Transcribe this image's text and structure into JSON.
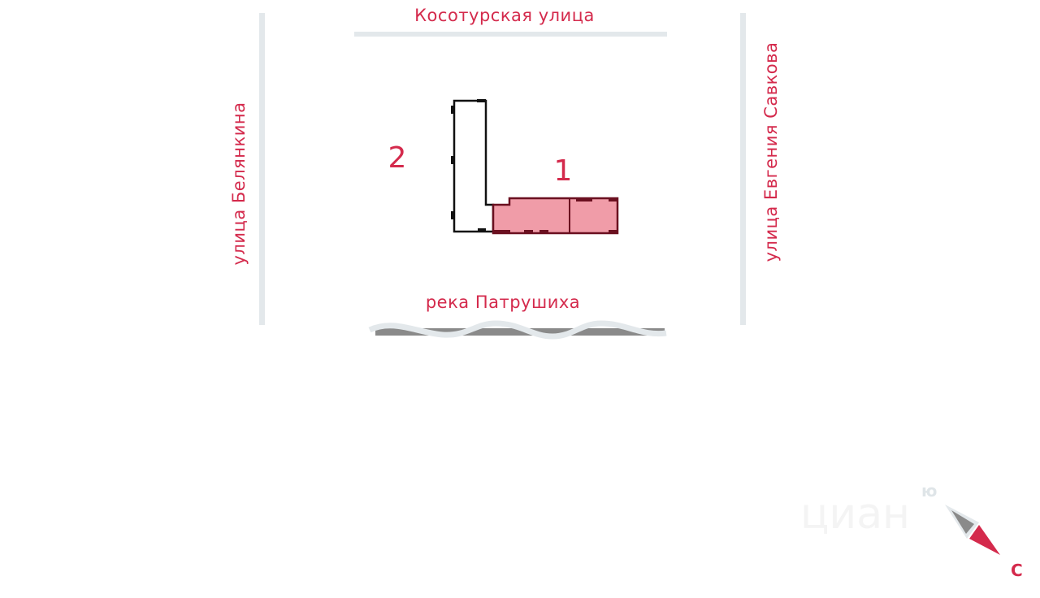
{
  "streets": {
    "top": "Косотурская  улица",
    "left": "улица  Белянкина",
    "right": "улица  Евгения  Савкова",
    "river": "река  Патрушиха"
  },
  "buildings": [
    {
      "number": "1",
      "highlighted": true
    },
    {
      "number": "2",
      "highlighted": false
    }
  ],
  "compass": {
    "south": "ю",
    "north": "С"
  },
  "watermark": "циан",
  "colors": {
    "label": "#d42a4c",
    "highlight_fill": "#f09ca8",
    "highlight_stroke": "#6b1020",
    "road": "#e3e8eb",
    "river": "#8a8a8a"
  }
}
